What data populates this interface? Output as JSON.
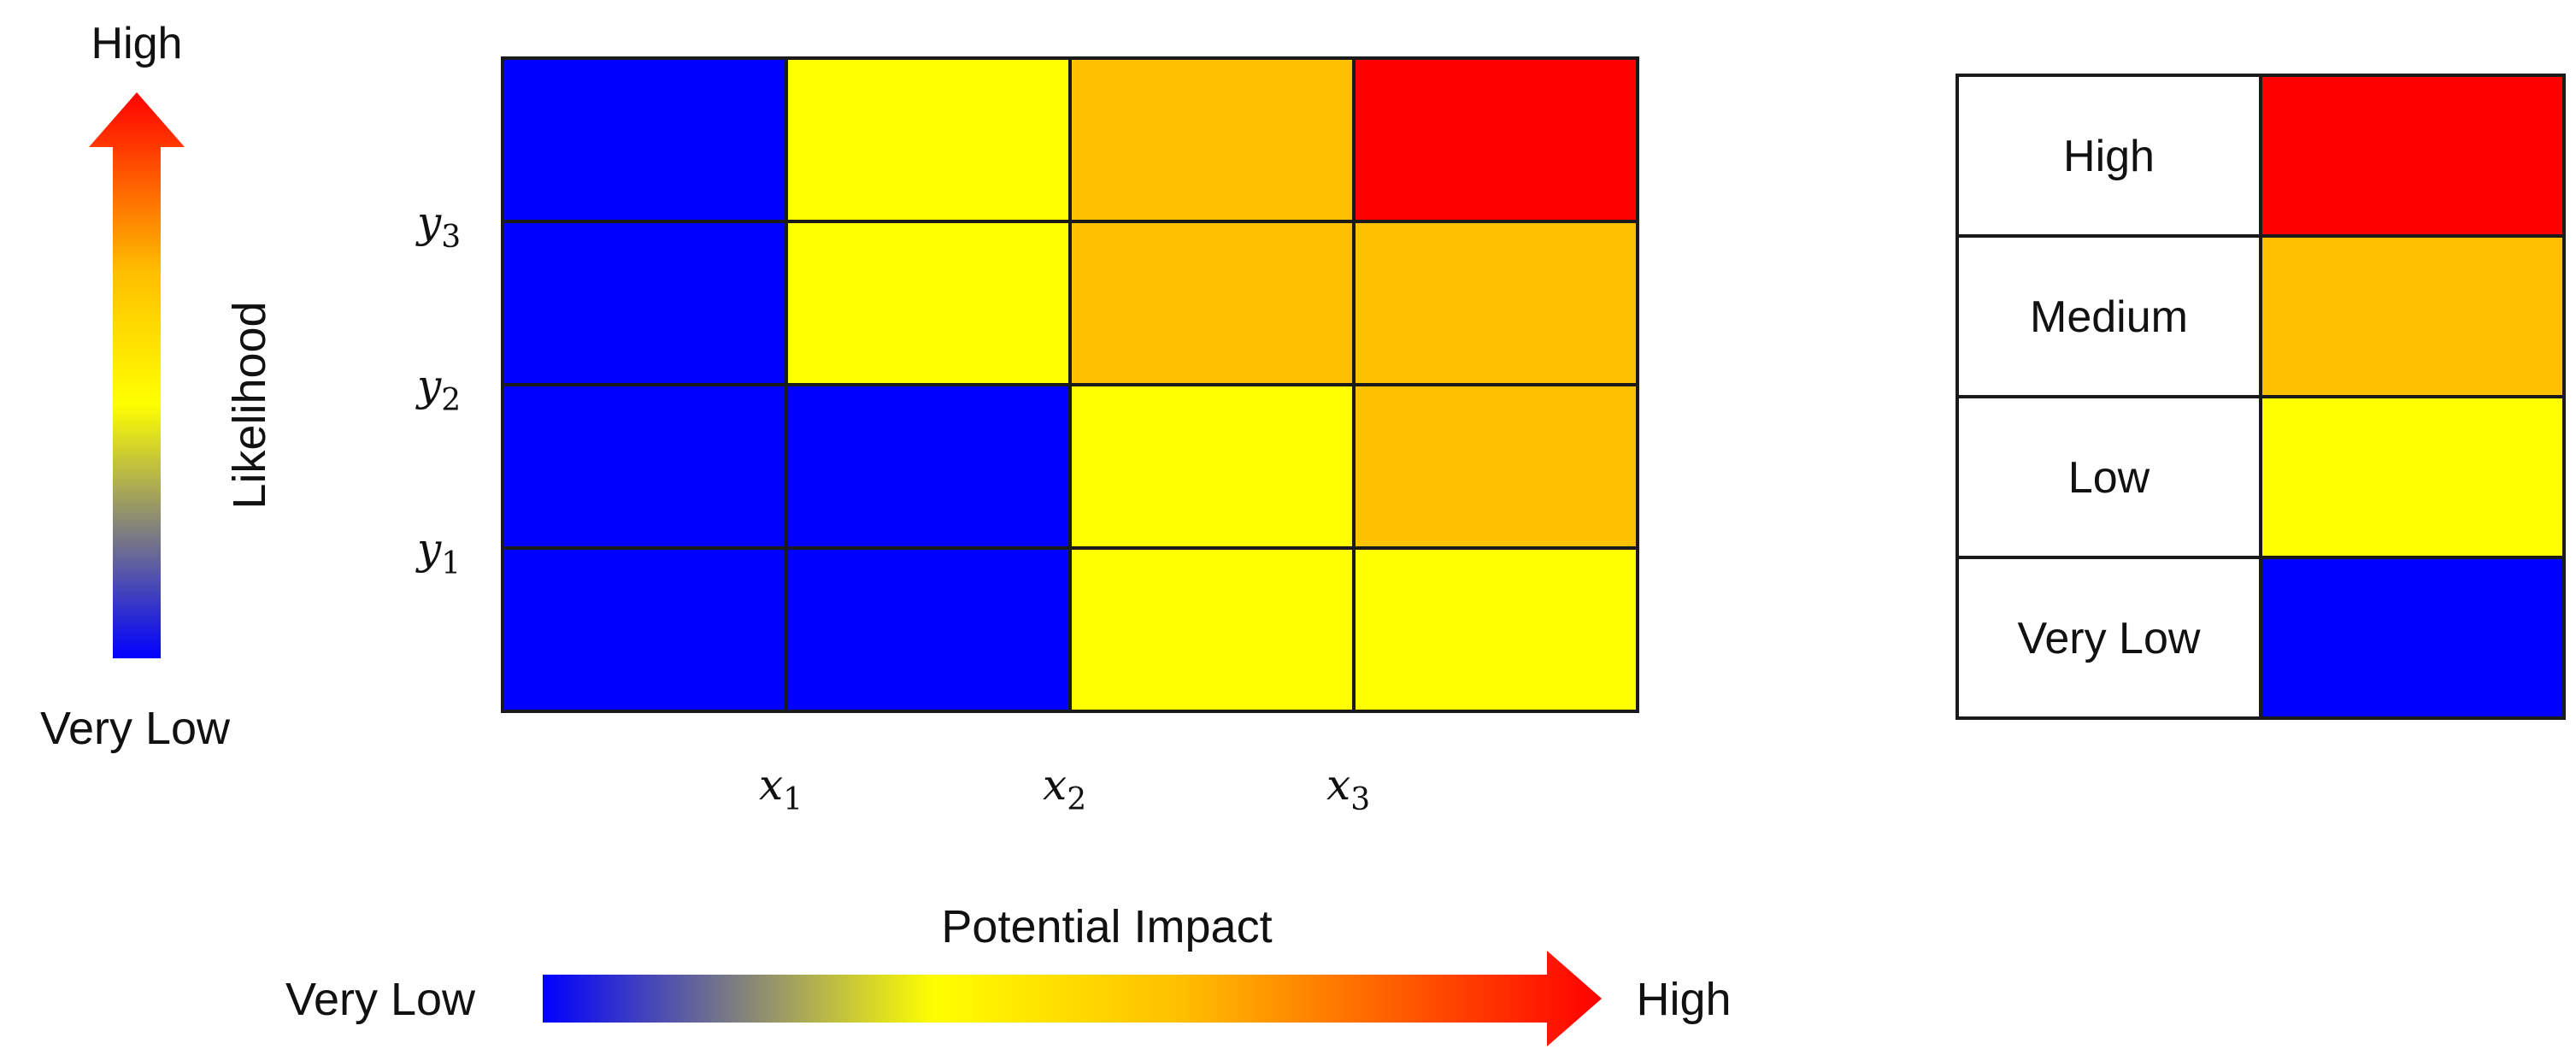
{
  "likelihood_axis": {
    "label": "Likelihood",
    "high_label": "High",
    "low_label": "Very Low"
  },
  "impact_axis": {
    "label": "Potential Impact",
    "high_label": "High",
    "low_label": "Very Low"
  },
  "colors": {
    "very_low": "#0000FF",
    "low": "#FFFF00",
    "medium": "#FFC000",
    "high": "#FF0000",
    "gridline": "#1a1a1a"
  },
  "matrix": {
    "x_ticks": [
      {
        "symbol": "x",
        "sub": "1"
      },
      {
        "symbol": "x",
        "sub": "2"
      },
      {
        "symbol": "x",
        "sub": "3"
      }
    ],
    "y_ticks": [
      {
        "symbol": "y",
        "sub": "3"
      },
      {
        "symbol": "y",
        "sub": "2"
      },
      {
        "symbol": "y",
        "sub": "1"
      }
    ],
    "rows_top_to_bottom": [
      [
        "very_low",
        "low",
        "medium",
        "high"
      ],
      [
        "very_low",
        "low",
        "medium",
        "medium"
      ],
      [
        "very_low",
        "very_low",
        "low",
        "medium"
      ],
      [
        "very_low",
        "very_low",
        "low",
        "low"
      ]
    ]
  },
  "legend": {
    "items": [
      {
        "label": "High",
        "level": "high"
      },
      {
        "label": "Medium",
        "level": "medium"
      },
      {
        "label": "Low",
        "level": "low"
      },
      {
        "label": "Very Low",
        "level": "very_low"
      }
    ]
  }
}
